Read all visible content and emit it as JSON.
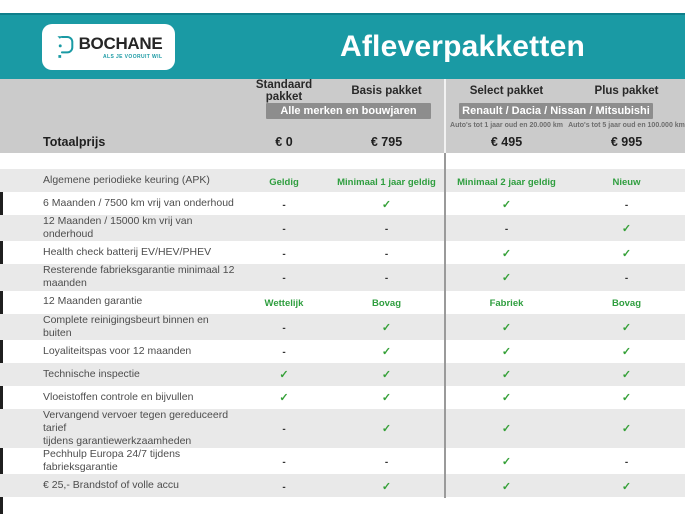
{
  "header": {
    "logo": {
      "brand": "BOCHANE",
      "tagline": "ALS JE VOORUIT WIL"
    },
    "title": "Afleverpakketten"
  },
  "table": {
    "groups": [
      {
        "banner": "Alle merken en bouwjaren",
        "columns": [
          "Standaard pakket",
          "Basis pakket"
        ],
        "subtitles": [
          "",
          ""
        ]
      },
      {
        "banner": "Renault / Dacia / Nissan / Mitsubishi",
        "columns": [
          "Select pakket",
          "Plus pakket"
        ],
        "subtitles": [
          "Auto's tot 1 jaar oud en 20.000 km",
          "Auto's tot 5 jaar oud en 100.000 km"
        ]
      }
    ],
    "total_row": {
      "label": "Totaalprijs",
      "prices": [
        "€ 0",
        "€ 795",
        "€ 495",
        "€ 995"
      ]
    },
    "rows": [
      {
        "label": "Algemene periodieke keuring (APK)",
        "values": [
          "Geldig",
          "Minimaal 1 jaar geldig",
          "Minimaal 2 jaar geldig",
          "Nieuw"
        ]
      },
      {
        "label": "6 Maanden / 7500 km vrij van onderhoud",
        "values": [
          "-",
          "check",
          "check",
          "-"
        ]
      },
      {
        "label": "12 Maanden / 15000 km vrij van onderhoud",
        "values": [
          "-",
          "-",
          "-",
          "check"
        ]
      },
      {
        "label": "Health check batterij EV/HEV/PHEV",
        "values": [
          "-",
          "-",
          "check",
          "check"
        ]
      },
      {
        "label": "Resterende fabrieksgarantie minimaal 12 maanden",
        "values": [
          "-",
          "-",
          "check",
          "-"
        ]
      },
      {
        "label": "12 Maanden  garantie",
        "values": [
          "Wettelijk",
          "Bovag",
          "Fabriek",
          "Bovag"
        ]
      },
      {
        "label": "Complete reinigingsbeurt binnen en buiten",
        "values": [
          "-",
          "check",
          "check",
          "check"
        ]
      },
      {
        "label": "Loyaliteitspas voor 12 maanden",
        "values": [
          "-",
          "check",
          "check",
          "check"
        ]
      },
      {
        "label": "Technische inspectie",
        "values": [
          "check",
          "check",
          "check",
          "check"
        ]
      },
      {
        "label": "Vloeistoffen controle en bijvullen",
        "values": [
          "check",
          "check",
          "check",
          "check"
        ]
      },
      {
        "label": "Vervangend vervoer tegen gereduceerd tarief\ntijdens garantiewerkzaamheden",
        "values": [
          "-",
          "check",
          "check",
          "check"
        ]
      },
      {
        "label": "Pechhulp Europa 24/7 tijdens fabrieksgarantie",
        "values": [
          "-",
          "-",
          "check",
          "-"
        ]
      },
      {
        "label": "€ 25,- Brandstof of  volle accu",
        "values": [
          "-",
          "check",
          "check",
          "check"
        ]
      }
    ]
  },
  "icons": {
    "check": "✓",
    "dash": "-"
  },
  "colors": {
    "teal": "#1a9aa4",
    "teal_dark": "#0f7f8b",
    "header_gray": "#cbcbcb",
    "banner_gray": "#8d8d8d",
    "row_gray": "#e9e9e9",
    "green": "#2f9e3f"
  }
}
